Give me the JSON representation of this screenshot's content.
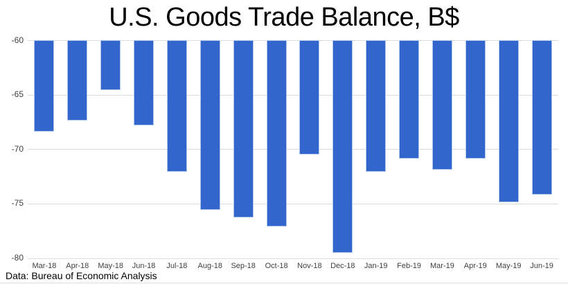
{
  "chart_data": {
    "type": "bar",
    "title": "U.S. Goods Trade Balance, B$",
    "categories": [
      "Mar-18",
      "Apr-18",
      "May-18",
      "Jun-18",
      "Jul-18",
      "Aug-18",
      "Sep-18",
      "Oct-18",
      "Nov-18",
      "Dec-18",
      "Jan-19",
      "Feb-19",
      "Mar-19",
      "Apr-19",
      "May-19",
      "Jun-19"
    ],
    "values": [
      -68.4,
      -67.4,
      -64.6,
      -67.8,
      -72.1,
      -75.6,
      -76.3,
      -77.1,
      -70.5,
      -79.5,
      -72.1,
      -70.9,
      -71.9,
      -70.9,
      -74.9,
      -74.2
    ],
    "xlabel": "",
    "ylabel": "",
    "ylim": [
      -80,
      -60
    ],
    "yticks": [
      -60,
      -65,
      -70,
      -75,
      -80
    ],
    "grid": true,
    "legend": "none",
    "colors": {
      "bar_fill": "#3366CC",
      "bar_border": "#AFC6EC",
      "gridline": "#DBDBDB",
      "tick_label": "#404040",
      "title": "#000000"
    }
  },
  "footer": {
    "source_note": "Data: Bureau of Economic Analysis"
  }
}
